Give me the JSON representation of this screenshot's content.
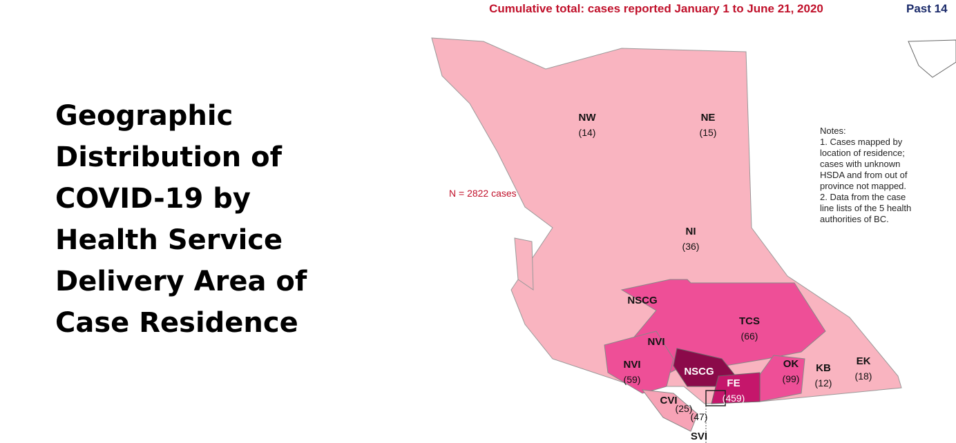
{
  "title": "Geographic Distribution of COVID-19 by Health Service Delivery Area of Case Residence",
  "map": {
    "heading": "Cumulative total: cases reported January 1 to June 21, 2020",
    "side_heading": "Past 14",
    "total": "N = 2822 cases",
    "notes": [
      "Notes:",
      "1. Cases mapped by",
      "location of residence;",
      "cases with unknown",
      "HSDA and from out of",
      "province not mapped.",
      "2. Data from the case",
      "line lists of the 5 health",
      "authorities of BC."
    ],
    "regions": [
      {
        "code": "NW",
        "count": "(14)"
      },
      {
        "code": "NE",
        "count": "(15)"
      },
      {
        "code": "NI",
        "count": "(36)"
      },
      {
        "code": "NSCG"
      },
      {
        "code": "NVI"
      },
      {
        "code": "TCS",
        "count": "(66)"
      },
      {
        "code": "NVI",
        "count": "(59)"
      },
      {
        "code": "NSCG"
      },
      {
        "code": "FE",
        "count": "(459)"
      },
      {
        "code": "OK",
        "count": "(99)"
      },
      {
        "code": "KB",
        "count": "(12)"
      },
      {
        "code": "EK",
        "count": "(18)"
      },
      {
        "code": "CVI",
        "count": "(25)"
      },
      {
        "code": "SVI",
        "count": "(47)"
      }
    ]
  }
}
